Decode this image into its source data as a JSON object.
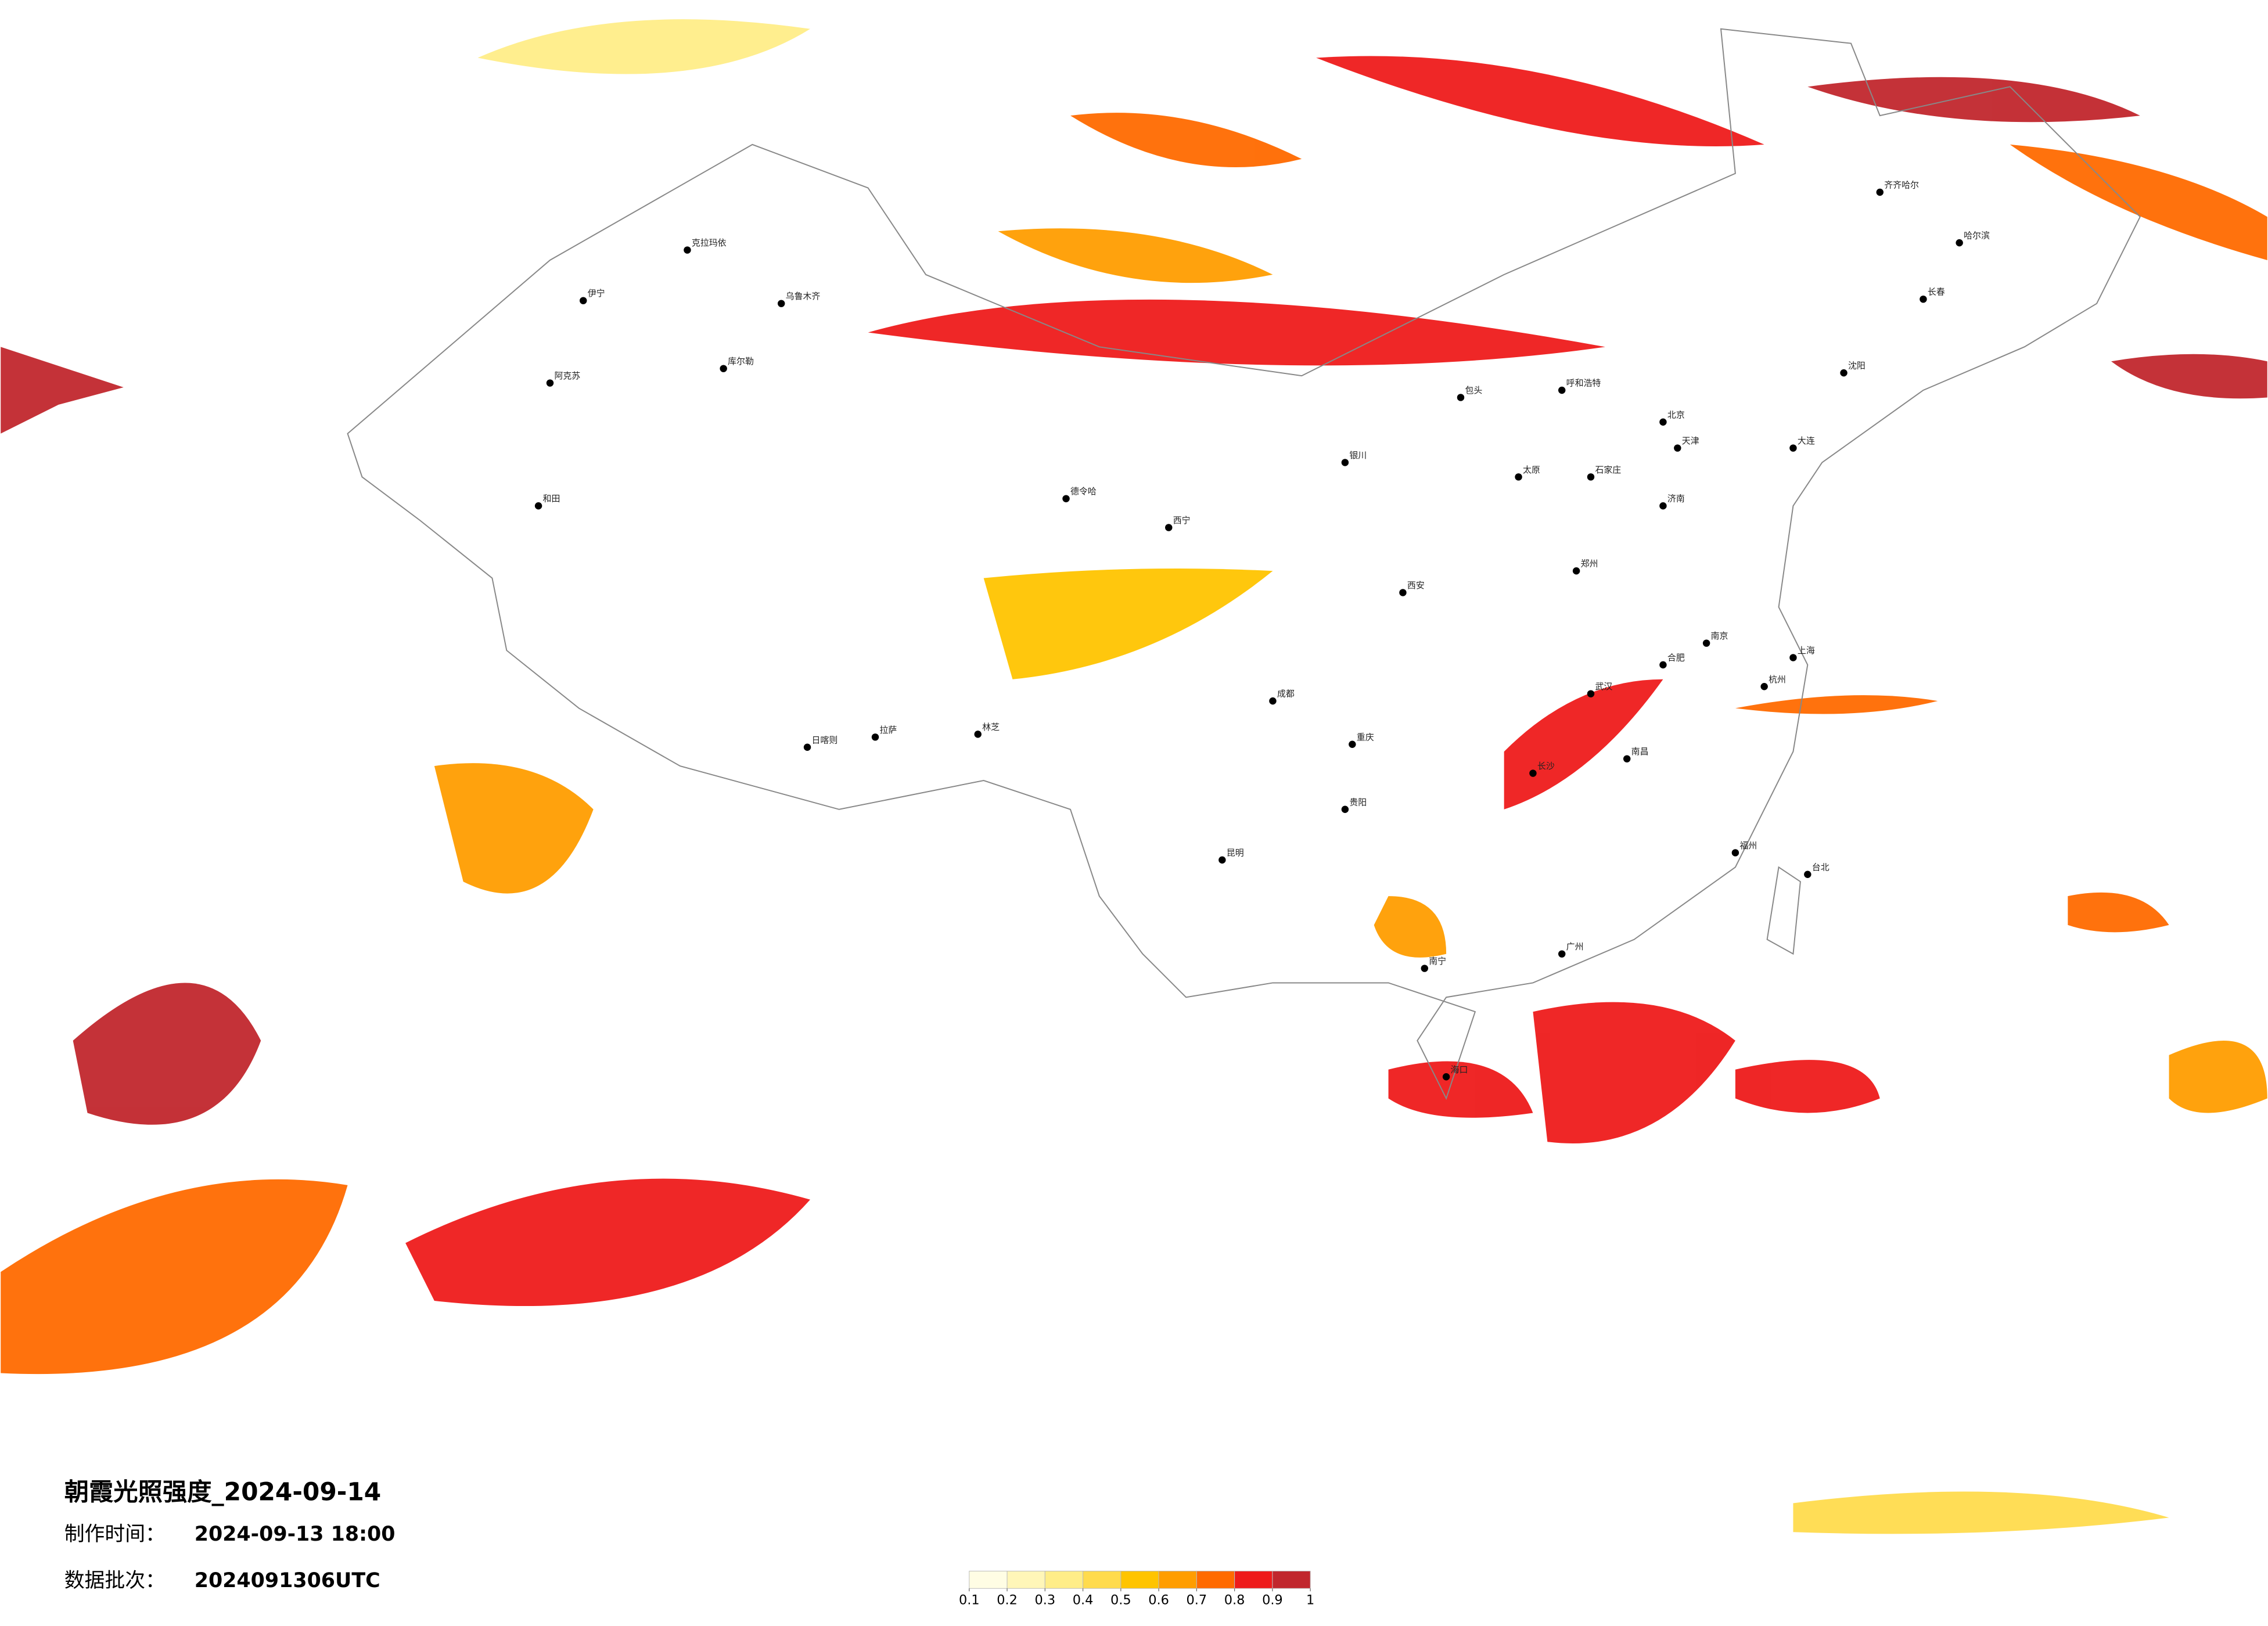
{
  "header": {
    "title": "朝霞光照强度_2024-09-14"
  },
  "info": [
    {
      "label": "制作时间：",
      "value": "2024-09-13 18:00"
    },
    {
      "label": "数据批次：",
      "value": "2024091306UTC"
    }
  ],
  "legend": {
    "ticks": [
      0.1,
      0.2,
      0.3,
      0.4,
      0.5,
      0.6,
      0.7,
      0.8,
      0.9,
      1
    ],
    "colors": [
      "#fffde4",
      "#fff6b8",
      "#ffed88",
      "#ffdb4d",
      "#ffc400",
      "#ff9d00",
      "#ff6a00",
      "#ee1b1b",
      "#c1272d"
    ]
  },
  "cities": [
    "克拉玛依",
    "伊宁",
    "乌鲁木齐",
    "库尔勒",
    "阿克苏",
    "和田",
    "德令哈",
    "西宁",
    "拉萨",
    "日喀则",
    "林芝",
    "呼和浩特",
    "包头",
    "银川",
    "太原",
    "石家庄",
    "北京",
    "天津",
    "哈尔滨",
    "齐齐哈尔",
    "长春",
    "沈阳",
    "大连",
    "济南",
    "郑州",
    "西安",
    "成都",
    "重庆",
    "武汉",
    "合肥",
    "南京",
    "上海",
    "杭州",
    "长沙",
    "南昌",
    "福州",
    "台北",
    "广州",
    "南宁",
    "昆明",
    "贵阳",
    "海口"
  ]
}
